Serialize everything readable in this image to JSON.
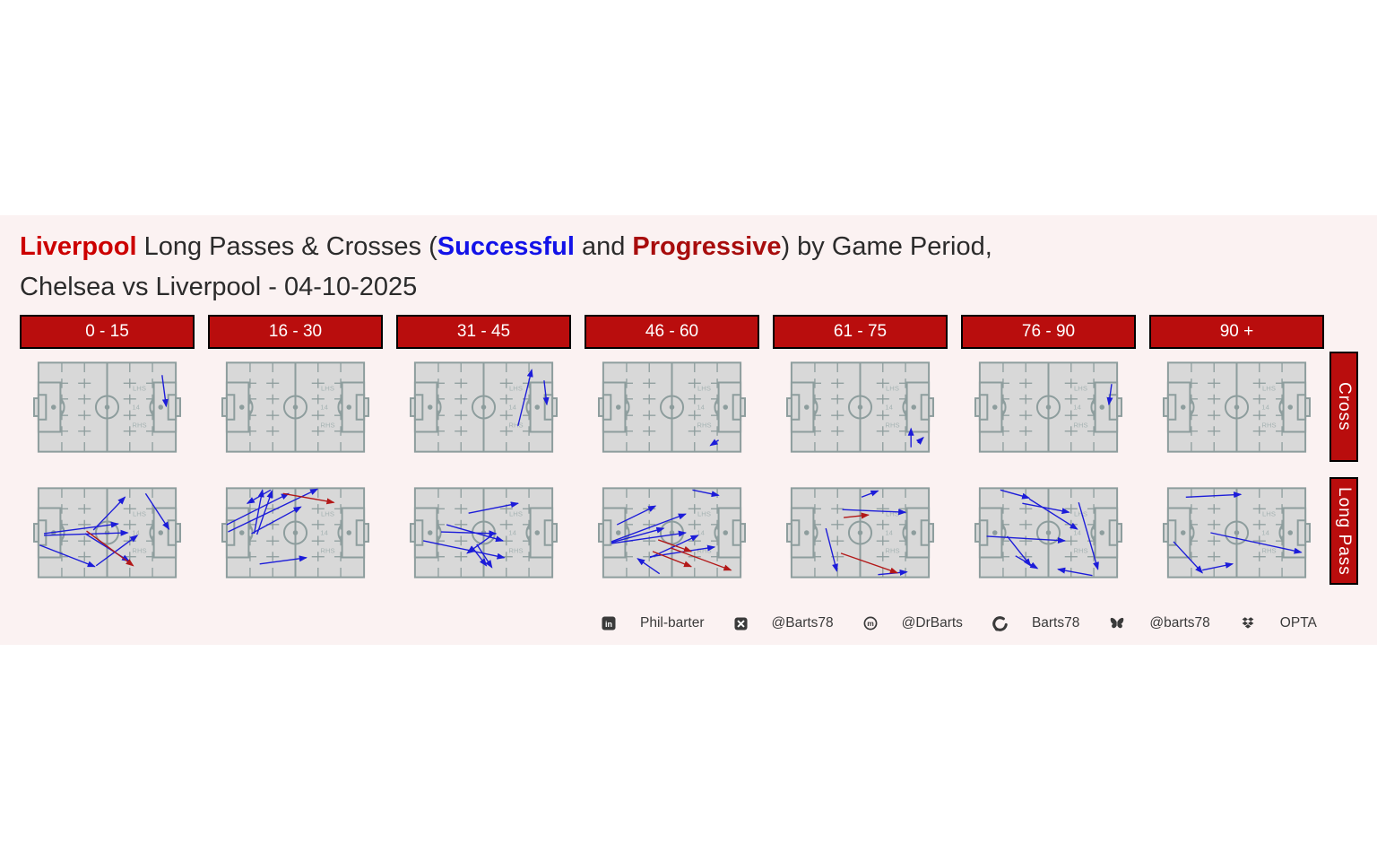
{
  "title": {
    "line1_segments": [
      {
        "text": "Liverpool",
        "color": "#cc0000",
        "bold": true
      },
      {
        "text": " Long Passes & Crosses (",
        "color": "#2b2b2b",
        "bold": false
      },
      {
        "text": "Successful",
        "color": "#1212e8",
        "bold": true
      },
      {
        "text": " and ",
        "color": "#2b2b2b",
        "bold": false
      },
      {
        "text": "Progressive",
        "color": "#a80d0d",
        "bold": true
      },
      {
        "text": ") by Game Period,",
        "color": "#2b2b2b",
        "bold": false
      }
    ],
    "line2": "Chelsea vs Liverpool - 04-10-2025"
  },
  "periods": [
    "0 - 15",
    "16 - 30",
    "31 - 45",
    "46 - 60",
    "61 - 75",
    "76 - 90",
    "90 +"
  ],
  "row_labels": {
    "cross": "Cross",
    "long_pass": "Long Pass"
  },
  "pitch_zone_labels": {
    "left_half_space": "LHS",
    "zone_14": "14",
    "right_half_space": "RHS"
  },
  "colors": {
    "band_background": "#fbf2f2",
    "header_background": "#b90d0d",
    "header_text": "#ffffff",
    "pitch_fill": "#d8d8d8",
    "pitch_line": "#8d9d9d",
    "pitch_zone_label": "#a6b3b3",
    "successful_arrow": "#1c1cd9",
    "progressive_arrow": "#b31818",
    "footer_text": "#3a3a3a"
  },
  "footer": {
    "items": [
      {
        "icon": "linkedin-icon",
        "label": "Phil-barter"
      },
      {
        "icon": "x-icon",
        "label": "@Barts78"
      },
      {
        "icon": "mastodon-icon",
        "label": "@DrBarts"
      },
      {
        "icon": "github-icon",
        "label": "Barts78"
      },
      {
        "icon": "bluesky-icon",
        "label": "@barts78"
      },
      {
        "icon": "dropbox-icon",
        "label": "OPTA"
      }
    ]
  },
  "chart_data": {
    "type": "scatter",
    "subtype": "pass-arrow-pitch-small-multiples",
    "rows": [
      "Cross",
      "Long Pass"
    ],
    "columns": [
      "0 - 15",
      "16 - 30",
      "31 - 45",
      "46 - 60",
      "61 - 75",
      "76 - 90",
      "90 +"
    ],
    "coordinate_system": "percent of pitch; x 0=left goal line to 100=right goal line, y 0=top touchline to 100=bottom touchline; attack left-to-right",
    "legend": {
      "successful": "blue",
      "progressive": "red"
    },
    "panels": [
      {
        "row": "Cross",
        "period": "0 - 15",
        "arrows": [
          {
            "from": [
              90,
              14
            ],
            "to": [
              93,
              49
            ],
            "result": "successful"
          }
        ]
      },
      {
        "row": "Cross",
        "period": "16 - 30",
        "arrows": []
      },
      {
        "row": "Cross",
        "period": "31 - 45",
        "arrows": [
          {
            "from": [
              75,
              71
            ],
            "to": [
              85,
              8
            ],
            "result": "successful"
          },
          {
            "from": [
              94,
              20
            ],
            "to": [
              96,
              47
            ],
            "result": "successful"
          }
        ]
      },
      {
        "row": "Cross",
        "period": "46 - 60",
        "arrows": [
          {
            "from": [
              84,
              87
            ],
            "to": [
              78,
              93
            ],
            "result": "successful"
          }
        ]
      },
      {
        "row": "Cross",
        "period": "61 - 75",
        "arrows": [
          {
            "from": [
              87,
              95
            ],
            "to": [
              87,
              74
            ],
            "result": "successful"
          },
          {
            "from": [
              92,
              90
            ],
            "to": [
              96,
              84
            ],
            "result": "successful"
          }
        ]
      },
      {
        "row": "Cross",
        "period": "76 - 90",
        "arrows": [
          {
            "from": [
              96,
              24
            ],
            "to": [
              94,
              47
            ],
            "result": "successful"
          }
        ]
      },
      {
        "row": "Cross",
        "period": "90 +",
        "arrows": []
      },
      {
        "row": "Long Pass",
        "period": "0 - 15",
        "arrows": [
          {
            "from": [
              4,
              51
            ],
            "to": [
              58,
              40
            ],
            "result": "successful"
          },
          {
            "from": [
              4,
              53
            ],
            "to": [
              65,
              50
            ],
            "result": "successful"
          },
          {
            "from": [
              40,
              47
            ],
            "to": [
              63,
              10
            ],
            "result": "successful"
          },
          {
            "from": [
              78,
              6
            ],
            "to": [
              95,
              46
            ],
            "result": "successful"
          },
          {
            "from": [
              1,
              64
            ],
            "to": [
              41,
              88
            ],
            "result": "successful"
          },
          {
            "from": [
              42,
              87
            ],
            "to": [
              72,
              53
            ],
            "result": "successful"
          },
          {
            "from": [
              34,
              51
            ],
            "to": [
              66,
              82
            ],
            "result": "successful"
          },
          {
            "from": [
              35,
              48
            ],
            "to": [
              69,
              87
            ],
            "result": "progressive"
          }
        ]
      },
      {
        "row": "Long Pass",
        "period": "16 - 30",
        "arrows": [
          {
            "from": [
              20,
              51
            ],
            "to": [
              26,
              2
            ],
            "result": "successful"
          },
          {
            "from": [
              22,
              52
            ],
            "to": [
              33,
              3
            ],
            "result": "successful"
          },
          {
            "from": [
              0,
              41
            ],
            "to": [
              45,
              6
            ],
            "result": "successful"
          },
          {
            "from": [
              1,
              49
            ],
            "to": [
              66,
              1
            ],
            "result": "successful"
          },
          {
            "from": [
              18,
              51
            ],
            "to": [
              54,
              21
            ],
            "result": "successful"
          },
          {
            "from": [
              32,
              2
            ],
            "to": [
              15,
              17
            ],
            "result": "successful"
          },
          {
            "from": [
              24,
              85
            ],
            "to": [
              58,
              78
            ],
            "result": "successful"
          },
          {
            "from": [
              41,
              6
            ],
            "to": [
              78,
              16
            ],
            "result": "progressive"
          }
        ]
      },
      {
        "row": "Long Pass",
        "period": "31 - 45",
        "arrows": [
          {
            "from": [
              39,
              28
            ],
            "to": [
              75,
              17
            ],
            "result": "successful"
          },
          {
            "from": [
              19,
              49
            ],
            "to": [
              59,
              51
            ],
            "result": "successful"
          },
          {
            "from": [
              23,
              41
            ],
            "to": [
              64,
              59
            ],
            "result": "successful"
          },
          {
            "from": [
              6,
              59
            ],
            "to": [
              65,
              78
            ],
            "result": "successful"
          },
          {
            "from": [
              56,
              53
            ],
            "to": [
              38,
              73
            ],
            "result": "successful"
          },
          {
            "from": [
              41,
              65
            ],
            "to": [
              52,
              87
            ],
            "result": "successful"
          },
          {
            "from": [
              45,
              63
            ],
            "to": [
              56,
              89
            ],
            "result": "successful"
          }
        ]
      },
      {
        "row": "Long Pass",
        "period": "46 - 60",
        "arrows": [
          {
            "from": [
              65,
              2
            ],
            "to": [
              84,
              8
            ],
            "result": "successful"
          },
          {
            "from": [
              10,
              41
            ],
            "to": [
              38,
              20
            ],
            "result": "successful"
          },
          {
            "from": [
              6,
              60
            ],
            "to": [
              60,
              29
            ],
            "result": "successful"
          },
          {
            "from": [
              6,
              61
            ],
            "to": [
              44,
              45
            ],
            "result": "successful"
          },
          {
            "from": [
              6,
              62
            ],
            "to": [
              60,
              50
            ],
            "result": "successful"
          },
          {
            "from": [
              34,
              78
            ],
            "to": [
              69,
              53
            ],
            "result": "successful"
          },
          {
            "from": [
              34,
              77
            ],
            "to": [
              81,
              66
            ],
            "result": "successful"
          },
          {
            "from": [
              41,
              96
            ],
            "to": [
              25,
              79
            ],
            "result": "successful"
          },
          {
            "from": [
              40,
              58
            ],
            "to": [
              64,
              71
            ],
            "result": "progressive"
          },
          {
            "from": [
              36,
              71
            ],
            "to": [
              64,
              88
            ],
            "result": "progressive"
          },
          {
            "from": [
              49,
              67
            ],
            "to": [
              93,
              92
            ],
            "result": "progressive"
          }
        ]
      },
      {
        "row": "Long Pass",
        "period": "61 - 75",
        "arrows": [
          {
            "from": [
              51,
              10
            ],
            "to": [
              63,
              3
            ],
            "result": "successful"
          },
          {
            "from": [
              37,
              24
            ],
            "to": [
              83,
              27
            ],
            "result": "successful"
          },
          {
            "from": [
              25,
              45
            ],
            "to": [
              33,
              93
            ],
            "result": "successful"
          },
          {
            "from": [
              63,
              97
            ],
            "to": [
              84,
              94
            ],
            "result": "successful"
          },
          {
            "from": [
              38,
              33
            ],
            "to": [
              56,
              30
            ],
            "result": "progressive"
          },
          {
            "from": [
              36,
              73
            ],
            "to": [
              77,
              95
            ],
            "result": "progressive"
          }
        ]
      },
      {
        "row": "Long Pass",
        "period": "76 - 90",
        "arrows": [
          {
            "from": [
              15,
              2
            ],
            "to": [
              36,
              11
            ],
            "result": "successful"
          },
          {
            "from": [
              31,
              17
            ],
            "to": [
              65,
              27
            ],
            "result": "successful"
          },
          {
            "from": [
              36,
              12
            ],
            "to": [
              71,
              46
            ],
            "result": "successful"
          },
          {
            "from": [
              5,
              54
            ],
            "to": [
              62,
              59
            ],
            "result": "successful"
          },
          {
            "from": [
              20,
              54
            ],
            "to": [
              37,
              87
            ],
            "result": "successful"
          },
          {
            "from": [
              26,
              76
            ],
            "to": [
              42,
              90
            ],
            "result": "successful"
          },
          {
            "from": [
              72,
              16
            ],
            "to": [
              86,
              91
            ],
            "result": "successful"
          },
          {
            "from": [
              82,
              98
            ],
            "to": [
              57,
              91
            ],
            "result": "successful"
          }
        ]
      },
      {
        "row": "Long Pass",
        "period": "90 +",
        "arrows": [
          {
            "from": [
              13,
              10
            ],
            "to": [
              53,
              7
            ],
            "result": "successful"
          },
          {
            "from": [
              31,
              50
            ],
            "to": [
              97,
              72
            ],
            "result": "successful"
          },
          {
            "from": [
              4,
              60
            ],
            "to": [
              25,
              95
            ],
            "result": "successful"
          },
          {
            "from": [
              25,
              92
            ],
            "to": [
              47,
              85
            ],
            "result": "successful"
          }
        ]
      }
    ]
  }
}
